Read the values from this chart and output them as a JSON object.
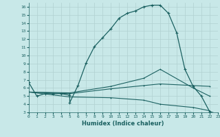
{
  "xlabel": "Humidex (Indice chaleur)",
  "bg_color": "#c8e8e8",
  "line_color": "#1a6060",
  "grid_color": "#b0d0d0",
  "xlim": [
    0,
    23
  ],
  "ylim": [
    3,
    16.5
  ],
  "xticks": [
    0,
    1,
    2,
    3,
    4,
    5,
    6,
    7,
    8,
    9,
    10,
    11,
    12,
    13,
    14,
    15,
    16,
    17,
    18,
    19,
    20,
    21,
    22,
    23
  ],
  "yticks": [
    3,
    4,
    5,
    6,
    7,
    8,
    9,
    10,
    11,
    12,
    13,
    14,
    15,
    16
  ],
  "curve1_x": [
    0,
    1,
    2,
    3,
    4,
    5,
    5,
    6,
    7,
    8,
    9,
    10,
    11,
    12,
    13,
    14,
    15,
    16,
    17,
    18,
    19,
    20,
    21,
    22,
    23
  ],
  "curve1_y": [
    6.7,
    5.0,
    5.3,
    5.3,
    5.3,
    5.1,
    4.2,
    6.3,
    9.1,
    11.1,
    12.2,
    13.3,
    14.6,
    15.2,
    15.5,
    16.0,
    16.2,
    16.2,
    15.2,
    12.8,
    8.3,
    6.2,
    5.0,
    3.1,
    2.8
  ],
  "curve2_x": [
    0,
    5,
    10,
    14,
    16,
    20,
    22
  ],
  "curve2_y": [
    5.5,
    5.3,
    5.9,
    6.3,
    6.5,
    6.3,
    6.2
  ],
  "curve3_x": [
    0,
    5,
    10,
    14,
    16,
    20,
    22
  ],
  "curve3_y": [
    5.5,
    5.4,
    6.2,
    7.2,
    8.3,
    6.0,
    5.0
  ],
  "curve4_x": [
    0,
    5,
    10,
    14,
    16,
    20,
    22
  ],
  "curve4_y": [
    5.5,
    4.9,
    4.8,
    4.5,
    4.0,
    3.6,
    3.2
  ]
}
